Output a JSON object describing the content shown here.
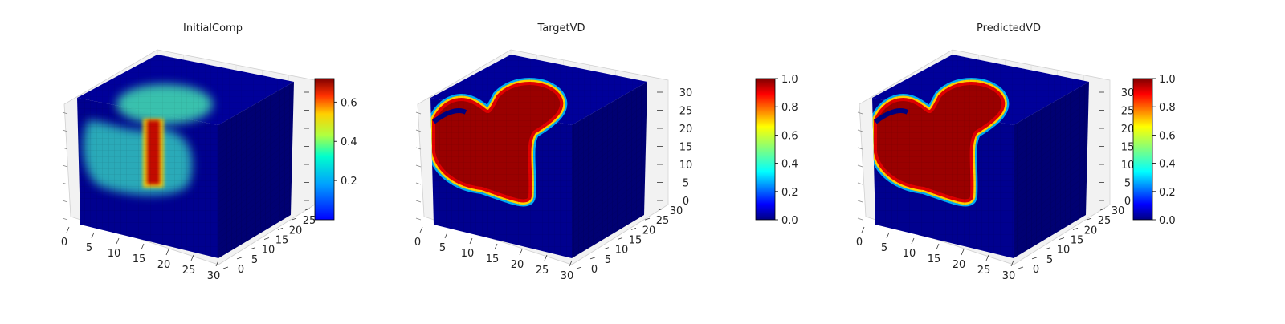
{
  "figure": {
    "panels": [
      {
        "title": "InitialComp",
        "colorbar": {
          "min": 0.0,
          "max": 0.72,
          "ticks": [
            "0.2",
            "0.4",
            "0.6"
          ],
          "tick_values": [
            0.2,
            0.4,
            0.6
          ]
        }
      },
      {
        "title": "TargetVD",
        "colorbar": {
          "min": 0.0,
          "max": 1.0,
          "ticks": [
            "0.0",
            "0.2",
            "0.4",
            "0.6",
            "0.8",
            "1.0"
          ],
          "tick_values": [
            0,
            0.2,
            0.4,
            0.6,
            0.8,
            1.0
          ]
        }
      },
      {
        "title": "PredictedVD",
        "colorbar": {
          "min": 0.0,
          "max": 1.0,
          "ticks": [
            "0.0",
            "0.2",
            "0.4",
            "0.6",
            "0.8",
            "1.0"
          ],
          "tick_values": [
            0,
            0.2,
            0.4,
            0.6,
            0.8,
            1.0
          ]
        }
      }
    ]
  },
  "chart_data": [
    {
      "type": "heatmap",
      "subtype": "3d-voxel-cube",
      "title": "InitialComp",
      "colormap": "jet",
      "x_ticks": [
        "0",
        "5",
        "10",
        "15",
        "20",
        "25",
        "30"
      ],
      "y_ticks": [
        "0",
        "5",
        "10",
        "15",
        "20",
        "25",
        "30"
      ],
      "z_ticks": [],
      "grid": true,
      "colorbar_range": [
        0.0,
        0.72
      ],
      "colorbar_ticks": [
        "0.2",
        "0.4",
        "0.6"
      ],
      "features": [
        {
          "region": "background",
          "value": 0.02
        },
        {
          "region": "upper blob on front face",
          "value": 0.3
        },
        {
          "region": "vertical bar, x≈17-20",
          "value": 0.72
        },
        {
          "region": "left lobe",
          "value": 0.3
        }
      ]
    },
    {
      "type": "heatmap",
      "subtype": "3d-voxel-cube",
      "title": "TargetVD",
      "colormap": "jet",
      "x_ticks": [
        "0",
        "5",
        "10",
        "15",
        "20",
        "25",
        "30"
      ],
      "y_ticks": [
        "0",
        "5",
        "10",
        "15",
        "20",
        "25",
        "30"
      ],
      "z_ticks": [
        "0",
        "5",
        "10",
        "15",
        "20",
        "25",
        "30"
      ],
      "grid": true,
      "colorbar_range": [
        0.0,
        1.0
      ],
      "colorbar_ticks": [
        "0.0",
        "0.2",
        "0.4",
        "0.6",
        "0.8",
        "1.0"
      ],
      "features": [
        {
          "region": "background",
          "value": 0.0
        },
        {
          "region": "blob interior",
          "value": 1.0
        },
        {
          "region": "blob boundary",
          "value": 0.5
        }
      ]
    },
    {
      "type": "heatmap",
      "subtype": "3d-voxel-cube",
      "title": "PredictedVD",
      "colormap": "jet",
      "x_ticks": [
        "0",
        "5",
        "10",
        "15",
        "20",
        "25",
        "30"
      ],
      "y_ticks": [
        "0",
        "5",
        "10",
        "15",
        "20",
        "25",
        "30"
      ],
      "z_ticks": [
        "0",
        "5",
        "10",
        "15",
        "20",
        "25",
        "30"
      ],
      "grid": true,
      "colorbar_range": [
        0.0,
        1.0
      ],
      "colorbar_ticks": [
        "0.0",
        "0.2",
        "0.4",
        "0.6",
        "0.8",
        "1.0"
      ],
      "features": [
        {
          "region": "background",
          "value": 0.0
        },
        {
          "region": "blob interior",
          "value": 1.0
        },
        {
          "region": "blob boundary",
          "value": 0.5
        }
      ]
    }
  ],
  "colors": {
    "background": "#ffffff",
    "pane": "#f2f2f2",
    "pane_grid": "#dddddd",
    "cube_front": "#00008f",
    "cube_side": "#000073",
    "cube_top": "#00009a"
  }
}
